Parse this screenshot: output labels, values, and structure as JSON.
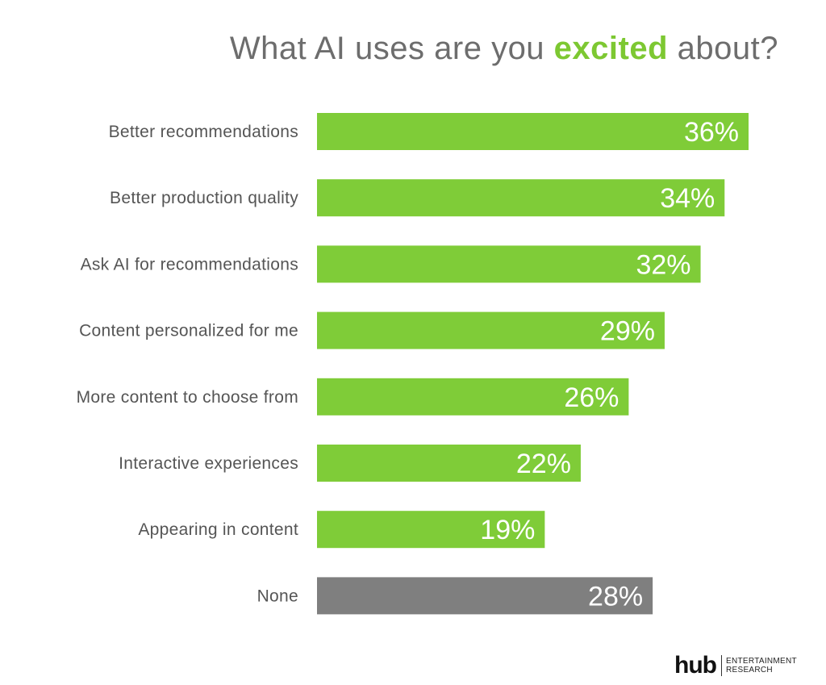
{
  "title": {
    "before": "What AI uses are you ",
    "highlight": "excited",
    "after": " about?"
  },
  "colors": {
    "bar": "#7fcc38",
    "bar_none": "#7f7f7f",
    "highlight": "#7dc832",
    "title": "#6d6d6d"
  },
  "chart_data": {
    "type": "bar",
    "orientation": "horizontal",
    "title": "What AI uses are you excited about?",
    "categories": [
      "Better recommendations",
      "Better production quality",
      "Ask AI for recommendations",
      "Content personalized for me",
      "More content to choose from",
      "Interactive experiences",
      "Appearing in content",
      "None"
    ],
    "values": [
      36,
      34,
      32,
      29,
      26,
      22,
      19,
      28
    ],
    "value_labels": [
      "36%",
      "34%",
      "32%",
      "29%",
      "26%",
      "22%",
      "19%",
      "28%"
    ],
    "bar_colors": [
      "#7fcc38",
      "#7fcc38",
      "#7fcc38",
      "#7fcc38",
      "#7fcc38",
      "#7fcc38",
      "#7fcc38",
      "#7f7f7f"
    ],
    "xlabel": "",
    "ylabel": "",
    "grid": false,
    "legend": "none"
  },
  "logo": {
    "mark": "hub",
    "line1": "ENTERTAINMENT",
    "line2": "RESEARCH"
  }
}
